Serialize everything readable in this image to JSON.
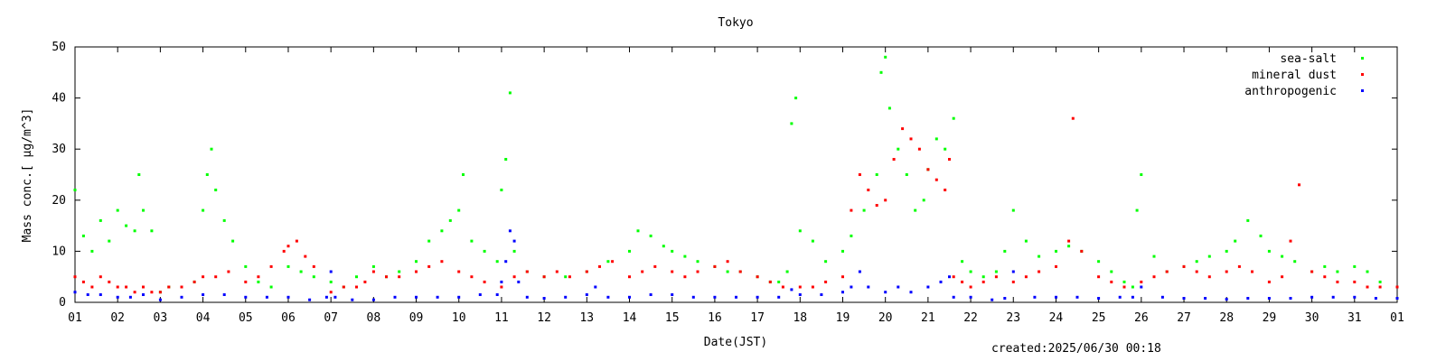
{
  "chart_data": {
    "type": "scatter",
    "title": "Tokyo",
    "xlabel": "Date(JST)",
    "ylabel": "Mass conc.[ μg/m^3]",
    "xlim": [
      1,
      32
    ],
    "ylim": [
      0,
      50
    ],
    "yticks": [
      0,
      10,
      20,
      30,
      40,
      50
    ],
    "xtick_labels": [
      "01",
      "02",
      "03",
      "04",
      "05",
      "06",
      "07",
      "08",
      "09",
      "10",
      "11",
      "12",
      "13",
      "14",
      "15",
      "16",
      "17",
      "18",
      "19",
      "20",
      "21",
      "22",
      "23",
      "24",
      "25",
      "26",
      "27",
      "28",
      "29",
      "30",
      "31",
      "01"
    ],
    "grid": false,
    "legend_position": "top-right",
    "footer": "created:2025/06/30 00:18",
    "series": [
      {
        "name": "sea-salt",
        "color": "#00ff00",
        "x": [
          1.0,
          1.2,
          1.4,
          1.6,
          1.8,
          2.0,
          2.2,
          2.4,
          2.5,
          2.6,
          2.8,
          3.0,
          3.2,
          3.5,
          3.8,
          4.0,
          4.1,
          4.2,
          4.3,
          4.5,
          4.7,
          5.0,
          5.3,
          5.6,
          6.0,
          6.3,
          6.6,
          7.0,
          7.3,
          7.6,
          8.0,
          8.3,
          8.6,
          9.0,
          9.3,
          9.6,
          9.8,
          10.0,
          10.1,
          10.3,
          10.6,
          10.9,
          11.0,
          11.1,
          11.2,
          11.3,
          11.6,
          12.0,
          12.5,
          13.0,
          13.5,
          14.0,
          14.2,
          14.5,
          14.8,
          15.0,
          15.3,
          15.6,
          16.0,
          16.3,
          16.6,
          17.0,
          17.3,
          17.5,
          17.7,
          17.8,
          17.9,
          18.0,
          18.3,
          18.6,
          19.0,
          19.2,
          19.5,
          19.8,
          19.9,
          20.0,
          20.1,
          20.3,
          20.5,
          20.7,
          20.9,
          21.0,
          21.2,
          21.4,
          21.6,
          21.8,
          22.0,
          22.3,
          22.6,
          22.8,
          23.0,
          23.3,
          23.6,
          24.0,
          24.3,
          24.6,
          25.0,
          25.3,
          25.6,
          25.8,
          25.9,
          26.0,
          26.3,
          26.6,
          27.0,
          27.3,
          27.6,
          28.0,
          28.2,
          28.5,
          28.8,
          29.0,
          29.3,
          29.6,
          30.0,
          30.3,
          30.6,
          31.0,
          31.3,
          31.6,
          32.0
        ],
        "y": [
          22,
          13,
          10,
          16,
          12,
          18,
          15,
          14,
          25,
          18,
          14,
          2,
          3,
          3,
          4,
          18,
          25,
          30,
          22,
          16,
          12,
          7,
          4,
          3,
          7,
          6,
          5,
          4,
          3,
          5,
          7,
          5,
          6,
          8,
          12,
          14,
          16,
          18,
          25,
          12,
          10,
          8,
          22,
          28,
          41,
          10,
          6,
          5,
          5,
          6,
          8,
          10,
          14,
          13,
          11,
          10,
          9,
          8,
          7,
          6,
          6,
          5,
          4,
          4,
          6,
          35,
          40,
          14,
          12,
          8,
          10,
          13,
          18,
          25,
          45,
          48,
          38,
          30,
          25,
          18,
          20,
          26,
          32,
          30,
          36,
          8,
          6,
          5,
          6,
          10,
          18,
          12,
          9,
          10,
          11,
          10,
          8,
          6,
          4,
          3,
          18,
          25,
          9,
          6,
          7,
          8,
          9,
          10,
          12,
          16,
          13,
          10,
          9,
          8,
          6,
          7,
          6,
          7,
          6,
          4,
          3
        ]
      },
      {
        "name": "mineral dust",
        "color": "#ff0000",
        "x": [
          1.0,
          1.2,
          1.4,
          1.6,
          1.8,
          2.0,
          2.2,
          2.4,
          2.6,
          2.8,
          3.0,
          3.2,
          3.5,
          3.8,
          4.0,
          4.3,
          4.6,
          5.0,
          5.3,
          5.6,
          5.9,
          6.0,
          6.2,
          6.4,
          6.6,
          7.0,
          7.3,
          7.6,
          7.8,
          8.0,
          8.3,
          8.6,
          9.0,
          9.3,
          9.6,
          10.0,
          10.3,
          10.6,
          11.0,
          11.3,
          11.6,
          12.0,
          12.3,
          12.6,
          13.0,
          13.3,
          13.6,
          14.0,
          14.3,
          14.6,
          15.0,
          15.3,
          15.6,
          16.0,
          16.3,
          16.6,
          17.0,
          17.3,
          17.6,
          18.0,
          18.3,
          18.6,
          19.0,
          19.2,
          19.4,
          19.6,
          19.8,
          20.0,
          20.2,
          20.4,
          20.6,
          20.8,
          21.0,
          21.2,
          21.4,
          21.5,
          21.6,
          21.8,
          22.0,
          22.3,
          22.6,
          23.0,
          23.3,
          23.6,
          24.0,
          24.3,
          24.4,
          24.6,
          25.0,
          25.3,
          25.6,
          26.0,
          26.3,
          26.6,
          27.0,
          27.3,
          27.6,
          28.0,
          28.3,
          28.6,
          29.0,
          29.3,
          29.5,
          29.7,
          30.0,
          30.3,
          30.6,
          31.0,
          31.3,
          31.6,
          32.0
        ],
        "y": [
          5,
          4,
          3,
          5,
          4,
          3,
          3,
          2,
          3,
          2,
          2,
          3,
          3,
          4,
          5,
          5,
          6,
          4,
          5,
          7,
          10,
          11,
          12,
          9,
          7,
          2,
          3,
          3,
          4,
          6,
          5,
          5,
          6,
          7,
          8,
          6,
          5,
          4,
          3,
          5,
          6,
          5,
          6,
          5,
          6,
          7,
          8,
          5,
          6,
          7,
          6,
          5,
          6,
          7,
          8,
          6,
          5,
          4,
          3,
          3,
          3,
          4,
          5,
          18,
          25,
          22,
          19,
          20,
          28,
          34,
          32,
          30,
          26,
          24,
          22,
          28,
          5,
          4,
          3,
          4,
          5,
          4,
          5,
          6,
          7,
          12,
          36,
          10,
          5,
          4,
          3,
          4,
          5,
          6,
          7,
          6,
          5,
          6,
          7,
          6,
          4,
          5,
          12,
          23,
          6,
          5,
          4,
          4,
          3,
          3,
          3
        ]
      },
      {
        "name": "anthropogenic",
        "color": "#0000ff",
        "x": [
          1.0,
          1.3,
          1.6,
          2.0,
          2.3,
          2.6,
          3.0,
          3.5,
          4.0,
          4.5,
          5.0,
          5.5,
          6.0,
          6.5,
          6.9,
          7.0,
          7.1,
          7.5,
          8.0,
          8.5,
          9.0,
          9.5,
          10.0,
          10.5,
          10.9,
          11.0,
          11.1,
          11.2,
          11.3,
          11.4,
          11.6,
          12.0,
          12.5,
          13.0,
          13.2,
          13.5,
          14.0,
          14.5,
          15.0,
          15.5,
          16.0,
          16.5,
          17.0,
          17.5,
          17.8,
          18.0,
          18.5,
          19.0,
          19.2,
          19.4,
          19.6,
          20.0,
          20.3,
          20.6,
          21.0,
          21.3,
          21.5,
          21.6,
          22.0,
          22.5,
          22.8,
          23.0,
          23.5,
          24.0,
          24.5,
          25.0,
          25.5,
          25.8,
          26.0,
          26.5,
          27.0,
          27.5,
          28.0,
          28.5,
          29.0,
          29.5,
          30.0,
          30.5,
          31.0,
          31.5,
          32.0
        ],
        "y": [
          2,
          1.5,
          1.5,
          1,
          1,
          1.5,
          0.5,
          1,
          1.5,
          1.5,
          1,
          1,
          1,
          0.5,
          1,
          6,
          1,
          0.5,
          0.5,
          1,
          1,
          1,
          1,
          1.5,
          1.5,
          4,
          8,
          14,
          12,
          4,
          1,
          0.8,
          1,
          1.5,
          3,
          1,
          1,
          1.5,
          1.5,
          1,
          1,
          1,
          1,
          1,
          2.5,
          1.5,
          1.5,
          2,
          3,
          6,
          3,
          2,
          3,
          2,
          3,
          4,
          5,
          1,
          1,
          0.5,
          0.8,
          6,
          1,
          1,
          1,
          0.8,
          1,
          1,
          3,
          1,
          0.8,
          0.8,
          0.6,
          0.8,
          0.8,
          0.8,
          1,
          1,
          1,
          0.8,
          0.8
        ]
      }
    ]
  }
}
